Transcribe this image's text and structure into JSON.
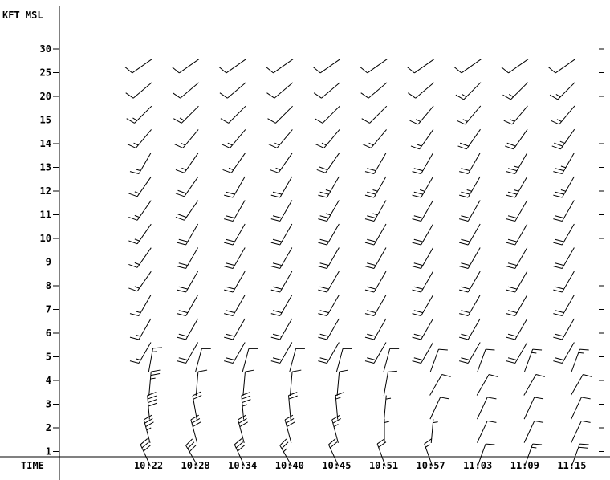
{
  "chart_data": {
    "type": "wind-barb-profile",
    "title": "",
    "ylabel": "KFT MSL",
    "xlabel": "TIME",
    "y_ticks": [
      "1",
      "2",
      "3",
      "4",
      "5",
      "6",
      "7",
      "8",
      "9",
      "10",
      "11",
      "12",
      "13",
      "14",
      "15",
      "20",
      "25",
      "30"
    ],
    "x_ticks": [
      "10:22",
      "10:28",
      "10:34",
      "10:40",
      "10:45",
      "10:51",
      "10:57",
      "11:03",
      "11:09",
      "11:15"
    ],
    "levels": [
      "1",
      "2",
      "3",
      "4",
      "5",
      "6",
      "7",
      "8",
      "9",
      "10",
      "11",
      "12",
      "13",
      "14",
      "15",
      "20",
      "25",
      "30"
    ],
    "series": [
      {
        "time": "10:22",
        "dir": [
          335,
          345,
          355,
          5,
          10,
          210,
          210,
          210,
          215,
          215,
          215,
          215,
          215,
          210,
          220,
          225,
          230,
          235
        ],
        "spd": [
          30,
          35,
          40,
          25,
          15,
          15,
          15,
          15,
          15,
          15,
          15,
          15,
          15,
          15,
          15,
          15,
          10,
          10
        ]
      },
      {
        "time": "10:28",
        "dir": [
          330,
          345,
          350,
          5,
          15,
          210,
          210,
          210,
          210,
          210,
          210,
          215,
          215,
          215,
          220,
          225,
          230,
          235
        ],
        "spd": [
          30,
          30,
          20,
          10,
          10,
          20,
          20,
          20,
          20,
          20,
          20,
          20,
          20,
          15,
          15,
          15,
          10,
          10
        ]
      },
      {
        "time": "10:34",
        "dir": [
          335,
          345,
          355,
          5,
          15,
          210,
          210,
          210,
          210,
          210,
          210,
          210,
          210,
          215,
          220,
          225,
          230,
          235
        ],
        "spd": [
          30,
          30,
          35,
          10,
          10,
          20,
          20,
          20,
          20,
          20,
          20,
          20,
          20,
          15,
          15,
          10,
          10,
          10
        ]
      },
      {
        "time": "10:40",
        "dir": [
          330,
          345,
          355,
          5,
          15,
          210,
          210,
          210,
          210,
          210,
          210,
          210,
          210,
          215,
          220,
          225,
          230,
          235
        ],
        "spd": [
          25,
          30,
          20,
          10,
          10,
          20,
          20,
          20,
          20,
          20,
          20,
          20,
          20,
          15,
          15,
          10,
          10,
          10
        ]
      },
      {
        "time": "10:45",
        "dir": [
          335,
          345,
          355,
          5,
          15,
          210,
          210,
          210,
          210,
          210,
          210,
          210,
          210,
          215,
          220,
          225,
          230,
          235
        ],
        "spd": [
          20,
          25,
          15,
          10,
          10,
          20,
          20,
          20,
          20,
          20,
          20,
          25,
          25,
          20,
          15,
          10,
          10,
          10
        ]
      },
      {
        "time": "10:51",
        "dir": [
          340,
          0,
          5,
          10,
          15,
          210,
          210,
          210,
          210,
          210,
          210,
          210,
          210,
          210,
          220,
          225,
          230,
          235
        ],
        "spd": [
          20,
          5,
          5,
          10,
          10,
          20,
          20,
          20,
          20,
          20,
          20,
          25,
          25,
          20,
          15,
          10,
          10,
          10
        ]
      },
      {
        "time": "10:57",
        "dir": [
          340,
          5,
          25,
          30,
          20,
          210,
          210,
          210,
          210,
          210,
          210,
          210,
          210,
          210,
          215,
          220,
          230,
          235
        ],
        "spd": [
          15,
          5,
          10,
          10,
          10,
          20,
          20,
          20,
          20,
          20,
          20,
          20,
          25,
          20,
          15,
          15,
          10,
          10
        ]
      },
      {
        "time": "11:03",
        "dir": [
          20,
          25,
          25,
          30,
          20,
          210,
          210,
          210,
          210,
          210,
          210,
          210,
          210,
          210,
          215,
          220,
          225,
          235
        ],
        "spd": [
          10,
          10,
          10,
          10,
          10,
          20,
          20,
          20,
          20,
          20,
          20,
          20,
          25,
          20,
          20,
          15,
          15,
          10
        ]
      },
      {
        "time": "11:09",
        "dir": [
          20,
          25,
          25,
          30,
          20,
          210,
          210,
          210,
          210,
          210,
          210,
          210,
          210,
          210,
          215,
          220,
          225,
          235
        ],
        "spd": [
          15,
          10,
          10,
          10,
          15,
          20,
          20,
          20,
          20,
          20,
          20,
          20,
          25,
          25,
          20,
          15,
          15,
          10
        ]
      },
      {
        "time": "11:15",
        "dir": [
          20,
          25,
          25,
          30,
          20,
          210,
          210,
          210,
          210,
          210,
          210,
          210,
          210,
          210,
          215,
          220,
          225,
          235
        ],
        "spd": [
          20,
          10,
          10,
          10,
          15,
          20,
          20,
          20,
          20,
          20,
          20,
          20,
          25,
          25,
          25,
          15,
          15,
          10
        ]
      }
    ],
    "grid": false,
    "legend": "none"
  }
}
